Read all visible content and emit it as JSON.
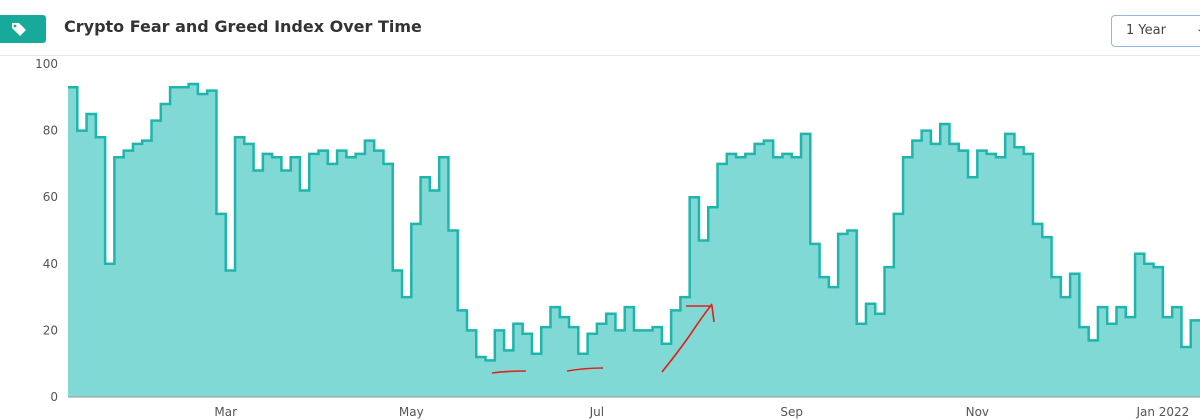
{
  "controls": {
    "range": "1 Year"
  },
  "chart_data": {
    "type": "step-area",
    "title": "Crypto Fear and Greed Index Over Time",
    "color": "#1fb5ad",
    "fill": "#80d9d4",
    "ylim": [
      0,
      100
    ],
    "yticks": [
      0,
      20,
      40,
      60,
      80,
      100
    ],
    "grid": true,
    "categories": [
      null,
      null,
      null,
      null,
      null,
      null,
      null,
      null,
      null,
      null,
      null,
      null,
      null,
      null,
      null,
      null,
      null,
      "Mar",
      null,
      null,
      null,
      null,
      null,
      null,
      null,
      null,
      null,
      null,
      null,
      null,
      null,
      null,
      null,
      null,
      null,
      null,
      null,
      "May",
      null,
      null,
      null,
      null,
      null,
      null,
      null,
      null,
      null,
      null,
      null,
      null,
      null,
      null,
      null,
      null,
      null,
      null,
      null,
      "Jul",
      null,
      null,
      null,
      null,
      null,
      null,
      null,
      null,
      null,
      null,
      null,
      null,
      null,
      null,
      null,
      null,
      null,
      null,
      null,
      null,
      "Sep",
      null,
      null,
      null,
      null,
      null,
      null,
      null,
      null,
      null,
      null,
      null,
      null,
      null,
      null,
      null,
      null,
      null,
      null,
      null,
      "Nov",
      null,
      null,
      null,
      null,
      null,
      null,
      null,
      null,
      null,
      null,
      null,
      null,
      null,
      null,
      null,
      null,
      null,
      null,
      null,
      "Jan 2022",
      null,
      null,
      null
    ],
    "values": [
      93,
      80,
      85,
      78,
      40,
      72,
      74,
      76,
      77,
      83,
      88,
      93,
      93,
      94,
      91,
      92,
      55,
      38,
      78,
      76,
      68,
      73,
      72,
      68,
      72,
      62,
      73,
      74,
      70,
      74,
      72,
      73,
      77,
      74,
      70,
      38,
      30,
      52,
      66,
      62,
      72,
      50,
      26,
      20,
      12,
      11,
      20,
      14,
      22,
      19,
      13,
      21,
      27,
      24,
      21,
      13,
      19,
      22,
      25,
      20,
      27,
      20,
      20,
      21,
      16,
      26,
      30,
      60,
      47,
      57,
      70,
      73,
      72,
      73,
      76,
      77,
      72,
      73,
      72,
      79,
      46,
      36,
      33,
      49,
      50,
      22,
      28,
      25,
      39,
      55,
      72,
      77,
      80,
      76,
      82,
      76,
      74,
      66,
      74,
      73,
      72,
      79,
      75,
      73,
      52,
      48,
      36,
      30,
      37,
      21,
      17,
      27,
      22,
      27,
      24,
      43,
      40,
      39,
      24,
      27,
      15,
      23
    ]
  }
}
